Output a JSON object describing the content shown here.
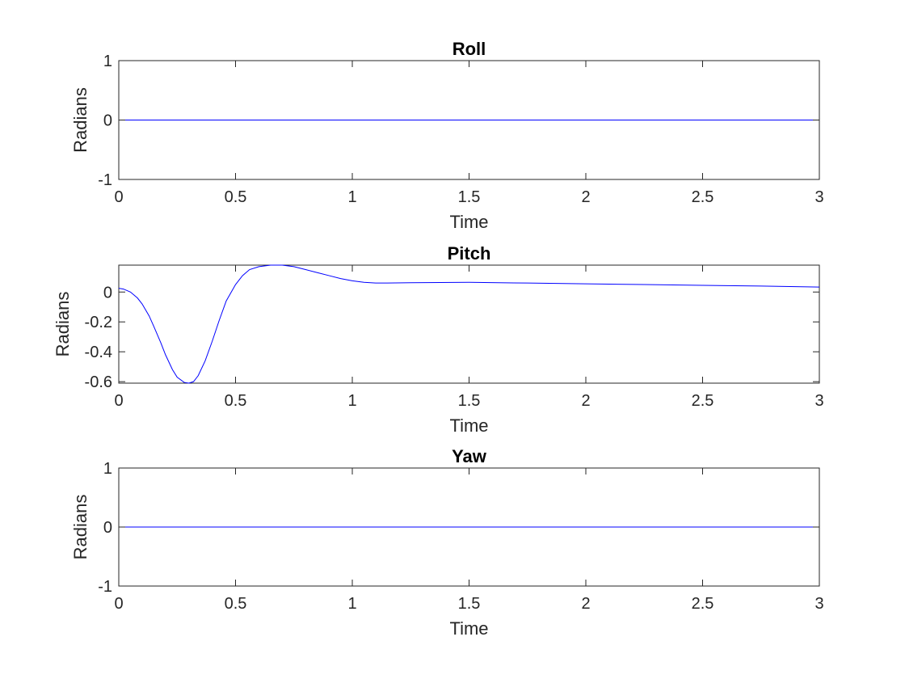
{
  "chart_data": [
    {
      "type": "line",
      "title": "Roll",
      "xlabel": "Time",
      "ylabel": "Radians",
      "xlim": [
        0,
        3
      ],
      "ylim": [
        -1,
        1
      ],
      "xticks": [
        0,
        0.5,
        1,
        1.5,
        2,
        2.5,
        3
      ],
      "yticks": [
        -1,
        0,
        1
      ],
      "grid": false,
      "series": [
        {
          "color": "#0000ff",
          "x": [
            0,
            3
          ],
          "y": [
            0,
            0
          ]
        }
      ]
    },
    {
      "type": "line",
      "title": "Pitch",
      "xlabel": "Time",
      "ylabel": "Radians",
      "xlim": [
        0,
        3
      ],
      "ylim": [
        -0.61,
        0.18
      ],
      "xticks": [
        0,
        0.5,
        1,
        1.5,
        2,
        2.5,
        3
      ],
      "yticks": [
        -0.6,
        -0.4,
        -0.2,
        0
      ],
      "grid": false,
      "series": [
        {
          "color": "#0000ff",
          "x": [
            0,
            0.02,
            0.05,
            0.08,
            0.1,
            0.13,
            0.15,
            0.18,
            0.2,
            0.23,
            0.25,
            0.28,
            0.3,
            0.32,
            0.34,
            0.37,
            0.4,
            0.43,
            0.46,
            0.5,
            0.53,
            0.56,
            0.6,
            0.65,
            0.7,
            0.75,
            0.8,
            0.85,
            0.9,
            0.95,
            1.0,
            1.05,
            1.1,
            1.15,
            1.25,
            1.5,
            1.75,
            2.0,
            2.25,
            2.5,
            2.75,
            3.0
          ],
          "y": [
            0.025,
            0.02,
            0.0,
            -0.04,
            -0.08,
            -0.16,
            -0.23,
            -0.34,
            -0.42,
            -0.52,
            -0.57,
            -0.605,
            -0.61,
            -0.6,
            -0.56,
            -0.46,
            -0.33,
            -0.19,
            -0.06,
            0.05,
            0.11,
            0.15,
            0.17,
            0.18,
            0.18,
            0.17,
            0.15,
            0.13,
            0.11,
            0.09,
            0.075,
            0.065,
            0.06,
            0.06,
            0.062,
            0.065,
            0.06,
            0.055,
            0.05,
            0.045,
            0.04,
            0.033
          ]
        }
      ]
    },
    {
      "type": "line",
      "title": "Yaw",
      "xlabel": "Time",
      "ylabel": "Radians",
      "xlim": [
        0,
        3
      ],
      "ylim": [
        -1,
        1
      ],
      "xticks": [
        0,
        0.5,
        1,
        1.5,
        2,
        2.5,
        3
      ],
      "yticks": [
        -1,
        0,
        1
      ],
      "grid": false,
      "series": [
        {
          "color": "#0000ff",
          "x": [
            0,
            3
          ],
          "y": [
            0,
            0
          ]
        }
      ]
    }
  ]
}
